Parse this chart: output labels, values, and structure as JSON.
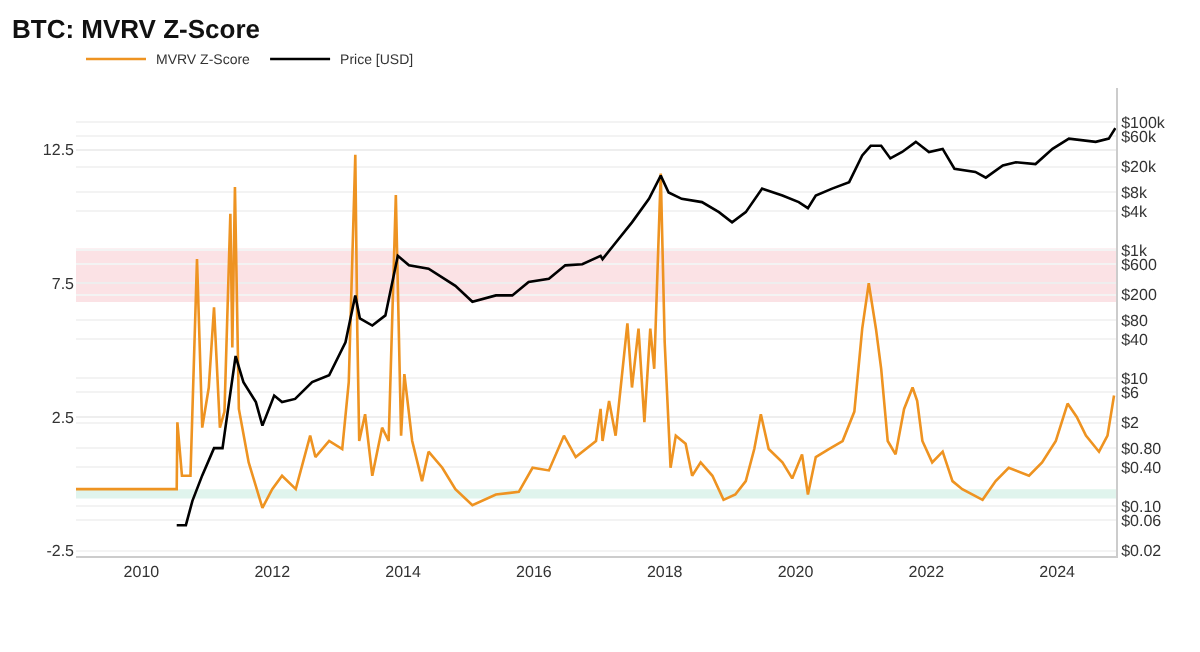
{
  "chart_data": {
    "type": "line",
    "title": "BTC: MVRV Z-Score",
    "xlim": [
      2009.0,
      2024.9
    ],
    "xticks": [
      2010,
      2012,
      2014,
      2016,
      2018,
      2020,
      2022,
      2024
    ],
    "ylim": [
      -2.7,
      14.8
    ],
    "yticks": [
      -2.5,
      2.5,
      7.5,
      12.5
    ],
    "y2lim": [
      0.0165,
      340000
    ],
    "y2ticks": [
      {
        "value": 0.02,
        "label": "$0.02"
      },
      {
        "value": 0.06,
        "label": "$0.06"
      },
      {
        "value": 0.1,
        "label": "$0.10"
      },
      {
        "value": 0.4,
        "label": "$0.40"
      },
      {
        "value": 0.8,
        "label": "$0.80"
      },
      {
        "value": 2,
        "label": "$2"
      },
      {
        "value": 6,
        "label": "$6"
      },
      {
        "value": 10,
        "label": "$10"
      },
      {
        "value": 40,
        "label": "$40"
      },
      {
        "value": 80,
        "label": "$80"
      },
      {
        "value": 200,
        "label": "$200"
      },
      {
        "value": 600,
        "label": "$600"
      },
      {
        "value": 1000,
        "label": "$1k"
      },
      {
        "value": 4000,
        "label": "$4k"
      },
      {
        "value": 8000,
        "label": "$8k"
      },
      {
        "value": 20000,
        "label": "$20k"
      },
      {
        "value": 60000,
        "label": "$60k"
      },
      {
        "value": 100000,
        "label": "$100k"
      }
    ],
    "log": "y2",
    "grid": "y",
    "legend": "top left",
    "marker": "none",
    "line_style": "solid",
    "bands": [
      {
        "axis": "y",
        "from": 6.8,
        "to": 8.8,
        "color": "#f9d5da"
      },
      {
        "axis": "y",
        "from": -0.55,
        "to": -0.2,
        "color": "#d3f0e6"
      }
    ],
    "series": [
      {
        "name": "MVRV Z-Score",
        "color": "#ee9321",
        "x": [
          2009.0,
          2010.54,
          2010.55,
          2010.62,
          2010.75,
          2010.85,
          2010.93,
          2011.03,
          2011.11,
          2011.2,
          2011.27,
          2011.36,
          2011.39,
          2011.43,
          2011.49,
          2011.64,
          2011.85,
          2012.0,
          2012.15,
          2012.36,
          2012.58,
          2012.66,
          2012.87,
          2013.07,
          2013.17,
          2013.27,
          2013.3,
          2013.33,
          2013.42,
          2013.53,
          2013.68,
          2013.78,
          2013.89,
          2013.97,
          2014.02,
          2014.14,
          2014.29,
          2014.39,
          2014.6,
          2014.8,
          2015.06,
          2015.42,
          2015.77,
          2015.98,
          2016.23,
          2016.46,
          2016.64,
          2016.95,
          2017.02,
          2017.05,
          2017.15,
          2017.25,
          2017.43,
          2017.5,
          2017.6,
          2017.69,
          2017.78,
          2017.84,
          2017.94,
          2018.0,
          2018.09,
          2018.17,
          2018.32,
          2018.42,
          2018.55,
          2018.73,
          2018.9,
          2019.08,
          2019.24,
          2019.37,
          2019.47,
          2019.59,
          2019.8,
          2019.95,
          2020.1,
          2020.19,
          2020.31,
          2020.51,
          2020.72,
          2020.9,
          2021.02,
          2021.12,
          2021.23,
          2021.31,
          2021.41,
          2021.53,
          2021.66,
          2021.79,
          2021.86,
          2021.94,
          2022.09,
          2022.25,
          2022.4,
          2022.55,
          2022.86,
          2023.06,
          2023.26,
          2023.57,
          2023.77,
          2023.98,
          2024.16,
          2024.3,
          2024.44,
          2024.64,
          2024.77,
          2024.87
        ],
        "values": [
          -0.2,
          -0.2,
          2.3,
          0.3,
          0.3,
          8.4,
          2.1,
          3.6,
          6.6,
          2.1,
          2.7,
          10.1,
          5.1,
          11.1,
          2.8,
          0.8,
          -0.9,
          -0.2,
          0.3,
          -0.2,
          1.8,
          1.0,
          1.6,
          1.3,
          3.8,
          12.3,
          5.8,
          1.6,
          2.6,
          0.3,
          2.1,
          1.6,
          10.8,
          1.8,
          4.1,
          1.6,
          0.1,
          1.2,
          0.6,
          -0.2,
          -0.8,
          -0.4,
          -0.3,
          0.6,
          0.5,
          1.8,
          1.0,
          1.6,
          2.8,
          1.6,
          3.1,
          1.8,
          6.0,
          3.6,
          5.8,
          2.3,
          5.8,
          4.3,
          11.6,
          5.3,
          0.6,
          1.8,
          1.5,
          0.3,
          0.8,
          0.3,
          -0.6,
          -0.4,
          0.1,
          1.3,
          2.6,
          1.3,
          0.8,
          0.2,
          1.1,
          -0.4,
          1.0,
          1.3,
          1.6,
          2.7,
          5.8,
          7.5,
          5.8,
          4.3,
          1.6,
          1.1,
          2.8,
          3.6,
          3.1,
          1.6,
          0.8,
          1.2,
          0.1,
          -0.2,
          -0.6,
          0.1,
          0.6,
          0.3,
          0.8,
          1.6,
          3.0,
          2.5,
          1.8,
          1.2,
          1.8,
          3.3
        ]
      },
      {
        "name": "Price [USD]",
        "color": "#000000",
        "axis": "y2",
        "x": [
          2010.54,
          2010.68,
          2010.78,
          2010.93,
          2011.11,
          2011.24,
          2011.34,
          2011.44,
          2011.56,
          2011.75,
          2011.85,
          2012.03,
          2012.15,
          2012.35,
          2012.61,
          2012.87,
          2013.12,
          2013.27,
          2013.34,
          2013.53,
          2013.73,
          2013.92,
          2014.09,
          2014.39,
          2014.8,
          2015.06,
          2015.42,
          2015.67,
          2015.92,
          2016.23,
          2016.48,
          2016.74,
          2017.02,
          2017.05,
          2017.25,
          2017.5,
          2017.76,
          2017.94,
          2018.06,
          2018.26,
          2018.57,
          2018.83,
          2019.03,
          2019.24,
          2019.49,
          2019.8,
          2020.05,
          2020.19,
          2020.31,
          2020.56,
          2020.82,
          2021.02,
          2021.15,
          2021.31,
          2021.45,
          2021.63,
          2021.84,
          2022.04,
          2022.25,
          2022.43,
          2022.75,
          2022.91,
          2023.17,
          2023.37,
          2023.67,
          2023.93,
          2024.18,
          2024.59,
          2024.79,
          2024.89
        ],
        "values": [
          0.05,
          0.05,
          0.12,
          0.3,
          0.8,
          0.8,
          4.2,
          22,
          8.6,
          4.2,
          1.8,
          5.3,
          4.2,
          4.7,
          8.6,
          11,
          36,
          195,
          85,
          66,
          95,
          810,
          575,
          510,
          275,
          155,
          195,
          195,
          315,
          355,
          575,
          600,
          810,
          720,
          1300,
          2700,
          6300,
          14500,
          7900,
          6300,
          5600,
          3900,
          2700,
          3900,
          9100,
          7100,
          5600,
          4500,
          7100,
          9100,
          11500,
          30000,
          42500,
          42500,
          27000,
          34000,
          49000,
          34000,
          38000,
          18600,
          16600,
          13500,
          21000,
          23500,
          22000,
          38000,
          55000,
          49000,
          55000,
          80000
        ]
      }
    ]
  }
}
